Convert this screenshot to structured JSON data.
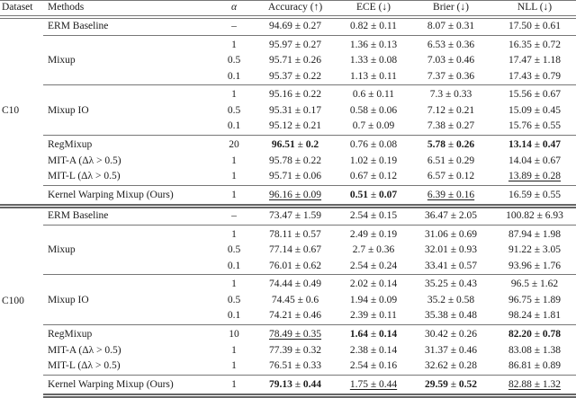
{
  "colors": {
    "text": "#1b1b1b",
    "rule": "#777777",
    "rule2": "#666666"
  },
  "table": {
    "header": [
      "Dataset",
      "Methods",
      "α",
      "Accuracy (↑)",
      "ECE (↓)",
      "Brier (↓)",
      "NLL (↓)"
    ],
    "sections": [
      {
        "dataset": "C10",
        "groups": [
          {
            "method": "ERM Baseline",
            "rows": [
              {
                "alpha": "–",
                "metrics": [
                  "94.69 ± 0.27",
                  "0.82 ± 0.11",
                  "8.07 ± 0.31",
                  "17.50 ± 0.61"
                ]
              }
            ]
          },
          {
            "method": "Mixup",
            "rows": [
              {
                "alpha": "1",
                "metrics": [
                  "95.97 ± 0.27",
                  "1.36 ± 0.13",
                  "6.53 ± 0.36",
                  "16.35 ± 0.72"
                ]
              },
              {
                "alpha": "0.5",
                "metrics": [
                  "95.71 ± 0.26",
                  "1.33 ± 0.08",
                  "7.03 ± 0.46",
                  "17.47 ± 1.18"
                ]
              },
              {
                "alpha": "0.1",
                "metrics": [
                  "95.37 ± 0.22",
                  "1.13 ± 0.11",
                  "7.37 ± 0.36",
                  "17.43 ± 0.79"
                ]
              }
            ]
          },
          {
            "method": "Mixup IO",
            "rows": [
              {
                "alpha": "1",
                "metrics": [
                  "95.16 ± 0.22",
                  "0.6 ± 0.11",
                  "7.3 ± 0.33",
                  "15.56 ± 0.67"
                ]
              },
              {
                "alpha": "0.5",
                "metrics": [
                  "95.31 ± 0.17",
                  "0.58 ± 0.06",
                  "7.12 ± 0.21",
                  "15.09 ± 0.45"
                ]
              },
              {
                "alpha": "0.1",
                "metrics": [
                  "95.12 ± 0.21",
                  "0.7 ± 0.09",
                  "7.38 ± 0.27",
                  "15.76 ± 0.55"
                ]
              }
            ]
          },
          {
            "rows": [
              {
                "method": "RegMixup",
                "alpha": "20",
                "metrics": [
                  {
                    "text": "96.51 ± 0.2",
                    "style": "bold"
                  },
                  "0.76 ± 0.08",
                  {
                    "text": "5.78 ± 0.26",
                    "style": "bold"
                  },
                  {
                    "text": "13.14 ± 0.47",
                    "style": "bold"
                  }
                ]
              },
              {
                "method": "MIT-A (Δλ > 0.5)",
                "alpha": "1",
                "metrics": [
                  "95.78 ± 0.22",
                  "1.02 ± 0.19",
                  "6.51 ± 0.29",
                  "14.04 ± 0.67"
                ]
              },
              {
                "method": "MIT-L (Δλ > 0.5)",
                "alpha": "1",
                "metrics": [
                  "95.71 ± 0.06",
                  "0.67 ± 0.12",
                  "6.57 ± 0.12",
                  {
                    "text": "13.89 ± 0.28",
                    "style": "underline"
                  }
                ]
              }
            ]
          },
          {
            "method": "Kernel Warping Mixup (Ours)",
            "rows": [
              {
                "alpha": "1",
                "metrics": [
                  {
                    "text": "96.16 ± 0.09",
                    "style": "underline"
                  },
                  {
                    "text": "0.51 ± 0.07",
                    "style": "bold"
                  },
                  {
                    "text": "6.39 ± 0.16",
                    "style": "underline"
                  },
                  "16.59 ± 0.55"
                ]
              }
            ]
          }
        ]
      },
      {
        "dataset": "C100",
        "groups": [
          {
            "method": "ERM Baseline",
            "rows": [
              {
                "alpha": "–",
                "metrics": [
                  "73.47 ± 1.59",
                  "2.54 ± 0.15",
                  "36.47 ± 2.05",
                  "100.82 ± 6.93"
                ]
              }
            ]
          },
          {
            "method": "Mixup",
            "rows": [
              {
                "alpha": "1",
                "metrics": [
                  "78.11 ± 0.57",
                  "2.49 ± 0.19",
                  "31.06 ± 0.69",
                  "87.94 ± 1.98"
                ]
              },
              {
                "alpha": "0.5",
                "metrics": [
                  "77.14 ± 0.67",
                  "2.7 ± 0.36",
                  "32.01 ± 0.93",
                  "91.22 ± 3.05"
                ]
              },
              {
                "alpha": "0.1",
                "metrics": [
                  "76.01 ± 0.62",
                  "2.54 ± 0.24",
                  "33.41 ± 0.57",
                  "93.96 ± 1.76"
                ]
              }
            ]
          },
          {
            "method": "Mixup IO",
            "rows": [
              {
                "alpha": "1",
                "metrics": [
                  "74.44 ± 0.49",
                  "2.02 ± 0.14",
                  "35.25 ± 0.43",
                  "96.5 ± 1.62"
                ]
              },
              {
                "alpha": "0.5",
                "metrics": [
                  "74.45 ± 0.6",
                  "1.94 ± 0.09",
                  "35.2 ± 0.58",
                  "96.75 ± 1.89"
                ]
              },
              {
                "alpha": "0.1",
                "metrics": [
                  "74.21 ± 0.46",
                  "2.39 ± 0.11",
                  "35.38 ± 0.48",
                  "98.24 ± 1.81"
                ]
              }
            ]
          },
          {
            "rows": [
              {
                "method": "RegMixup",
                "alpha": "10",
                "metrics": [
                  {
                    "text": "78.49 ± 0.35",
                    "style": "underline"
                  },
                  {
                    "text": "1.64 ± 0.14",
                    "style": "bold"
                  },
                  "30.42 ± 0.26",
                  {
                    "text": "82.20 ± 0.78",
                    "style": "bold"
                  }
                ]
              },
              {
                "method": "MIT-A (Δλ > 0.5)",
                "alpha": "1",
                "metrics": [
                  "77.39 ± 0.32",
                  "2.38 ± 0.14",
                  "31.37 ± 0.46",
                  "83.08 ± 1.38"
                ]
              },
              {
                "method": "MIT-L (Δλ > 0.5)",
                "alpha": "1",
                "metrics": [
                  "76.51 ± 0.33",
                  "2.54 ± 0.16",
                  "32.62 ± 0.28",
                  "86.81 ± 0.89"
                ]
              }
            ]
          },
          {
            "method": "Kernel Warping Mixup (Ours)",
            "rows": [
              {
                "alpha": "1",
                "metrics": [
                  {
                    "text": "79.13 ± 0.44",
                    "style": "bold"
                  },
                  {
                    "text": "1.75 ± 0.44",
                    "style": "underline"
                  },
                  {
                    "text": "29.59 ± 0.52",
                    "style": "bold"
                  },
                  {
                    "text": "82.88 ± 1.32",
                    "style": "underline"
                  }
                ]
              }
            ]
          }
        ]
      }
    ]
  }
}
